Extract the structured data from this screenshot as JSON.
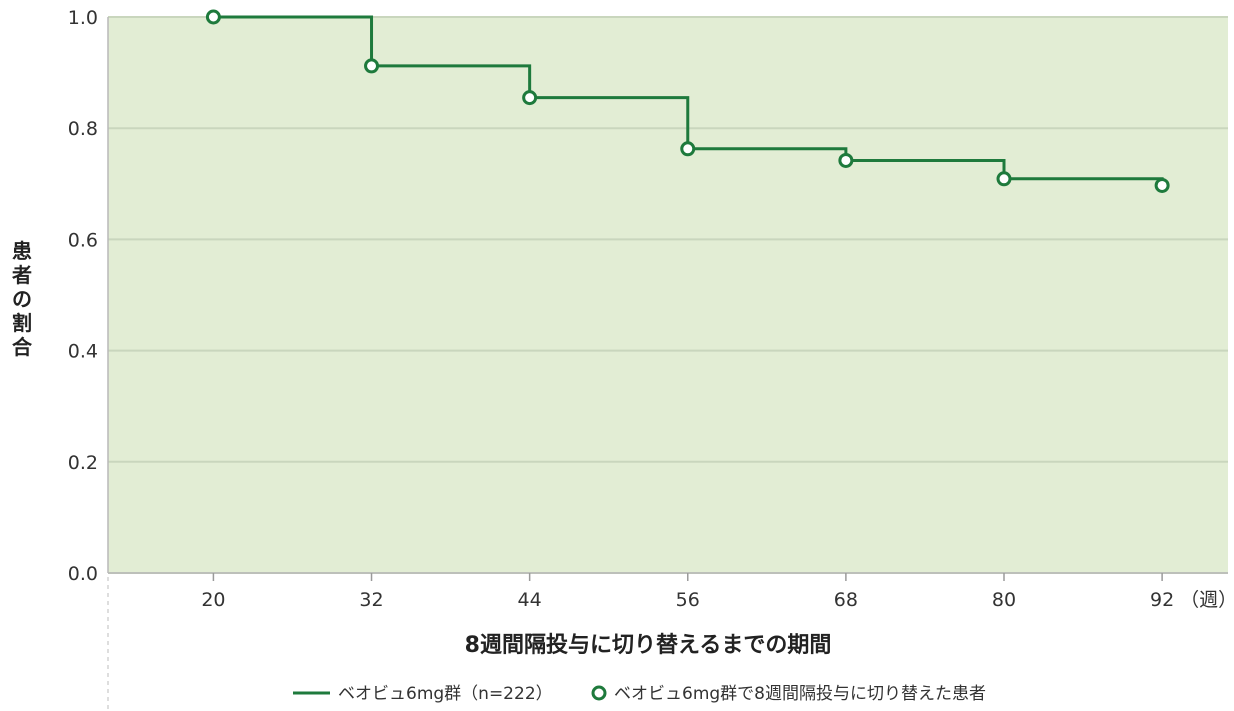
{
  "chart_data": {
    "type": "line",
    "step": true,
    "xlabel": "8週間隔投与に切り替えるまでの期間",
    "ylabel": "患者の割合",
    "x_unit": "（週）",
    "x": [
      20,
      32,
      44,
      56,
      68,
      80,
      92
    ],
    "xlim": [
      12,
      97
    ],
    "ylim": [
      0.0,
      1.0
    ],
    "y_ticks": [
      "0.0",
      "0.2",
      "0.4",
      "0.6",
      "0.8",
      "1.0"
    ],
    "x_ticks": [
      "20",
      "32",
      "44",
      "56",
      "68",
      "80",
      "92"
    ],
    "series": [
      {
        "name": "ベオビュ6mg群（n=222）",
        "color": "#1e7a3c",
        "values": [
          1.0,
          0.912,
          0.855,
          0.763,
          0.742,
          0.709,
          0.697
        ]
      }
    ],
    "marker_legend": "ベオビュ6mg群で8週間隔投与に切り替えた患者",
    "grid": true,
    "legend_position": "bottom",
    "colors": {
      "plot_bg": "#e2edd4",
      "line": "#1e7a3c",
      "grid": "#c9d6bd"
    }
  }
}
